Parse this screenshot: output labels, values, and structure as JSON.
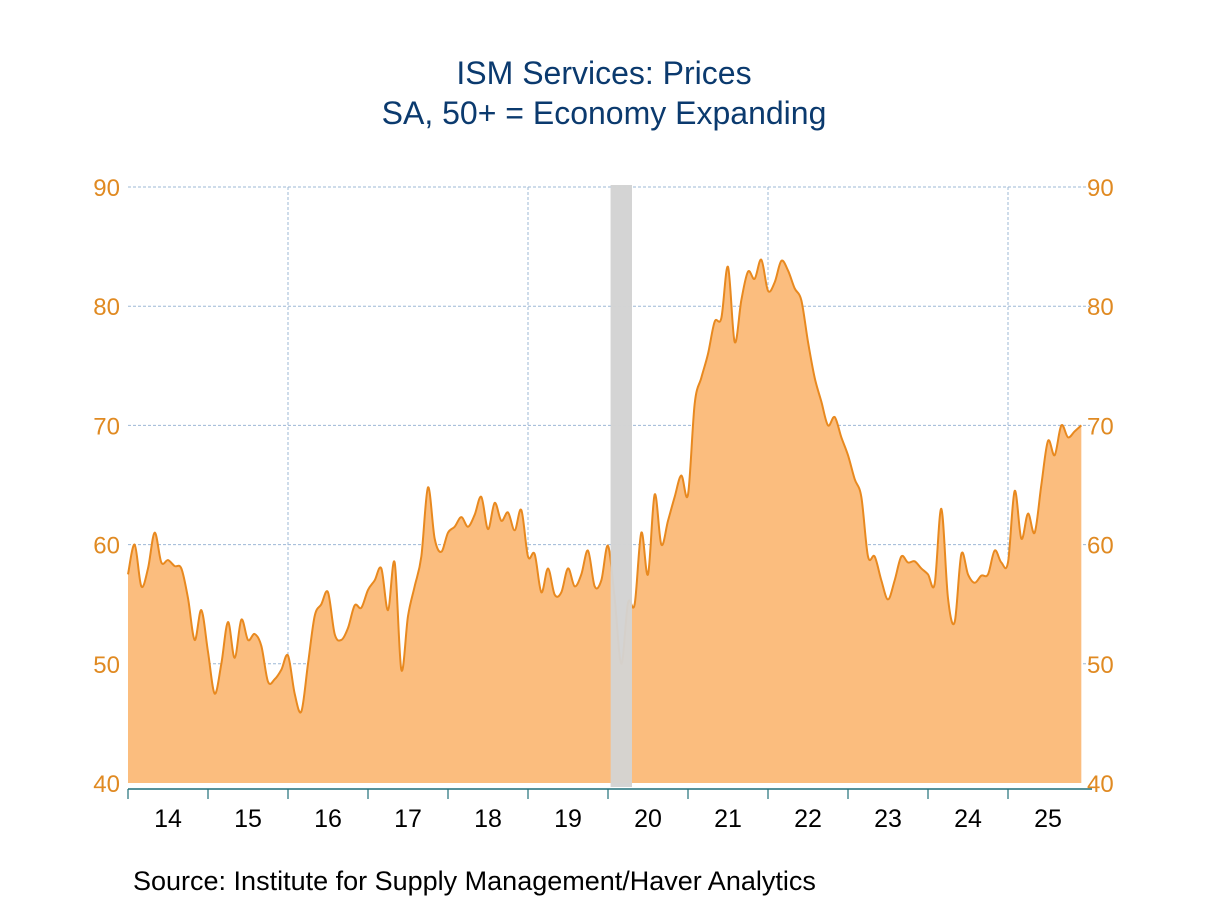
{
  "chart_data": {
    "type": "area",
    "title": "ISM Services: Prices",
    "subtitle": "SA, 50+ = Economy Expanding",
    "xlabel": "",
    "ylabel": "",
    "ylim": [
      40,
      90
    ],
    "yticks": [
      40,
      50,
      60,
      70,
      80,
      90
    ],
    "ytick_labels": [
      "40",
      "50",
      "60",
      "70",
      "80",
      "90"
    ],
    "xtick_labels": [
      "14",
      "15",
      "16",
      "17",
      "18",
      "19",
      "20",
      "21",
      "22",
      "23",
      "24",
      "25"
    ],
    "x_start": "2014-01",
    "frequency": "monthly",
    "grid": true,
    "dual_y_axis": true,
    "recession_shading": {
      "start": "2020-02",
      "end": "2020-04",
      "color": "#d4d4d4"
    },
    "series": [
      {
        "name": "ISM Services: Prices",
        "line_color": "#e8891f",
        "fill_color": "#fbbd7e",
        "values": [
          57.5,
          60.0,
          56.5,
          58.0,
          61.0,
          58.5,
          58.7,
          58.2,
          58.0,
          55.5,
          52.0,
          54.5,
          51.0,
          47.5,
          50.0,
          53.5,
          50.5,
          53.7,
          52.0,
          52.5,
          51.5,
          48.5,
          48.7,
          49.5,
          50.7,
          47.5,
          46.0,
          50.0,
          54.0,
          55.0,
          56.0,
          52.5,
          52.0,
          53.0,
          54.9,
          54.7,
          56.2,
          57.0,
          58.0,
          54.5,
          58.5,
          49.5,
          54.0,
          56.5,
          59.0,
          64.8,
          60.5,
          59.4,
          61.0,
          61.5,
          62.3,
          61.5,
          62.5,
          64.0,
          61.3,
          63.5,
          62.0,
          62.7,
          61.2,
          62.9,
          59.0,
          59.2,
          56.0,
          58.0,
          55.8,
          56.0,
          58.0,
          56.5,
          57.5,
          59.5,
          56.5,
          57.0,
          59.9,
          55.5,
          50.0,
          55.1,
          55.0,
          61.0,
          57.5,
          64.2,
          60.0,
          62.0,
          64.0,
          65.8,
          64.2,
          71.8,
          74.0,
          76.0,
          78.7,
          79.0,
          83.3,
          77.0,
          80.5,
          82.9,
          82.3,
          83.9,
          81.3,
          82.0,
          83.8,
          83.0,
          81.5,
          80.5,
          77.0,
          74.0,
          72.0,
          70.0,
          70.7,
          69.0,
          67.5,
          65.5,
          64.0,
          59.0,
          59.0,
          57.0,
          55.4,
          57.0,
          59.0,
          58.5,
          58.6,
          58.0,
          57.5,
          56.7,
          63.0,
          55.5,
          53.5,
          59.2,
          57.5,
          56.8,
          57.4,
          57.5,
          59.5,
          58.5,
          58.5,
          64.5,
          60.5,
          62.6,
          61.0,
          65.0,
          68.7,
          67.5,
          70.0,
          69.0,
          69.5,
          70.0
        ]
      }
    ]
  },
  "source": "Source:  Institute for Supply Management/Haver Analytics"
}
